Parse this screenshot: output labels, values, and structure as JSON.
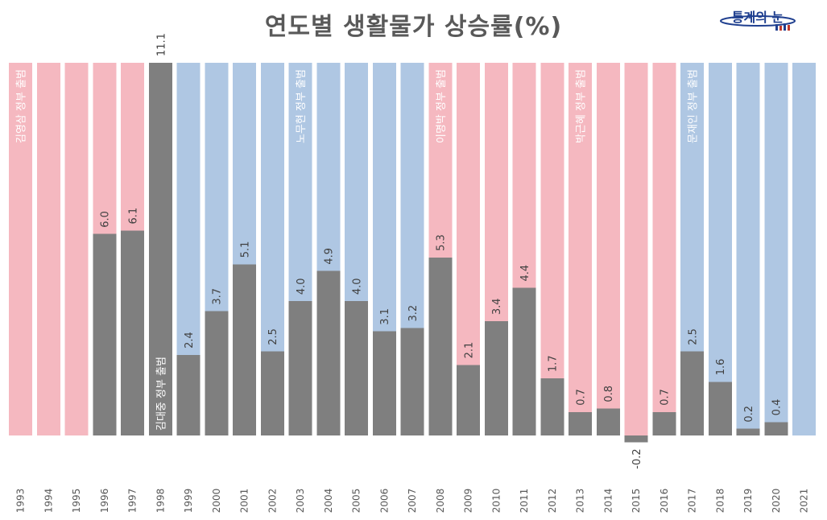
{
  "title": "연도별 생활물가 상승률(%)",
  "logo": {
    "text": "통계의 눈"
  },
  "colors": {
    "pink": "#f5b8c0",
    "blue": "#afc7e3",
    "bar": "#7f7f7f",
    "value_text": "#404040",
    "year_text": "#595959",
    "logo_navy": "#1f3f8f"
  },
  "chart_data": {
    "type": "bar",
    "title": "연도별 생활물가 상승률(%)",
    "xlabel": "",
    "ylabel": "",
    "ylim": [
      -1,
      11.1
    ],
    "grid": false,
    "categories": [
      "1993",
      "1994",
      "1995",
      "1996",
      "1997",
      "1998",
      "1999",
      "2000",
      "2001",
      "2002",
      "2003",
      "2004",
      "2005",
      "2006",
      "2007",
      "2008",
      "2009",
      "2010",
      "2011",
      "2012",
      "2013",
      "2014",
      "2015",
      "2016",
      "2017",
      "2018",
      "2019",
      "2020",
      "2021"
    ],
    "values": [
      null,
      null,
      null,
      6.0,
      6.1,
      11.1,
      2.4,
      3.7,
      5.1,
      2.5,
      4.0,
      4.9,
      4.0,
      3.1,
      3.2,
      5.3,
      2.1,
      3.4,
      4.4,
      1.7,
      0.7,
      0.8,
      -0.2,
      0.7,
      2.5,
      1.6,
      0.2,
      0.4,
      null
    ],
    "value_labels": [
      "",
      "",
      "",
      "6.0",
      "6.1",
      "11.1",
      "2.4",
      "3.7",
      "5.1",
      "2.5",
      "4.0",
      "4.9",
      "4.0",
      "3.1",
      "3.2",
      "5.3",
      "2.1",
      "3.4",
      "4.4",
      "1.7",
      "0.7",
      "0.8",
      "-0.2",
      "0.7",
      "2.5",
      "1.6",
      "0.2",
      "0.4",
      ""
    ],
    "background_colors": [
      "pink",
      "pink",
      "pink",
      "pink",
      "pink",
      "blue",
      "blue",
      "blue",
      "blue",
      "blue",
      "blue",
      "blue",
      "blue",
      "blue",
      "blue",
      "pink",
      "pink",
      "pink",
      "pink",
      "pink",
      "pink",
      "pink",
      "pink",
      "pink",
      "blue",
      "blue",
      "blue",
      "blue",
      "blue"
    ],
    "government_labels": [
      {
        "category": "1993",
        "text": "김영삼 정부 출범",
        "position": "top"
      },
      {
        "category": "1998",
        "text": "김대중 정부 출범",
        "position": "bottom"
      },
      {
        "category": "2003",
        "text": "노무현 정부 출범",
        "position": "top"
      },
      {
        "category": "2008",
        "text": "이명박 정부 출범",
        "position": "top"
      },
      {
        "category": "2013",
        "text": "박근혜 정부 출범",
        "position": "top"
      },
      {
        "category": "2017",
        "text": "문재인 정부 출범",
        "position": "top"
      }
    ]
  }
}
